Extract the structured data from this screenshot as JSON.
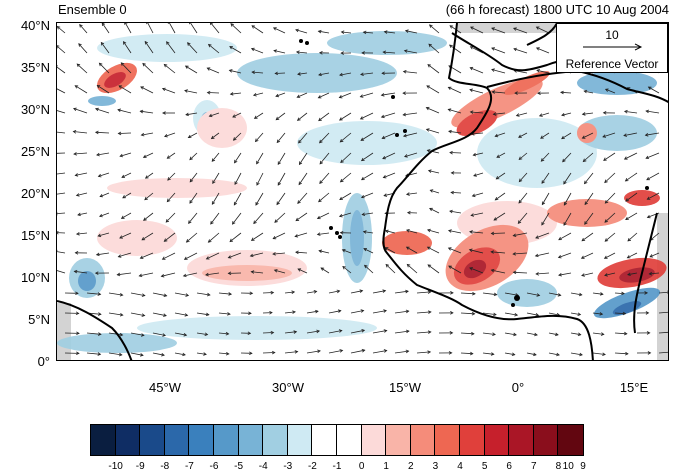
{
  "header": {
    "ensemble_label": "Ensemble 0",
    "forecast_label": "(66 h forecast) 1800 UTC 10 Aug 2004"
  },
  "map": {
    "extent": {
      "lon_min": -58,
      "lon_max": 20,
      "lat_min": 0,
      "lat_max": 40
    },
    "lat_ticks": [
      "0°",
      "5°N",
      "10°N",
      "15°N",
      "20°N",
      "25°N",
      "30°N",
      "35°N",
      "40°N"
    ],
    "lon_ticks": [
      "45°W",
      "30°W",
      "15°W",
      "0°",
      "15°E"
    ],
    "land_color": "#d3d3d3",
    "coastline_color": "#000000"
  },
  "reference_vector": {
    "value": "10",
    "label": "Reference Vector"
  },
  "colorbar": {
    "colors": [
      "#0a1e40",
      "#0f2d64",
      "#1a4a8a",
      "#2b68aa",
      "#3a80bd",
      "#5699c9",
      "#78b3d6",
      "#a1cfe2",
      "#cfeaf3",
      "#ffffff",
      "#ffffff",
      "#fcdad9",
      "#f9b4a8",
      "#f58c7a",
      "#ee6752",
      "#e0403b",
      "#c6202c",
      "#aa1626",
      "#8a0e1c",
      "#620610"
    ],
    "tick_labels": [
      "-10",
      "-9",
      "-8",
      "-7",
      "-6",
      "-5",
      "-4",
      "-3",
      "-2",
      "-1",
      "0",
      "1",
      "2",
      "3",
      "4",
      "5",
      "6",
      "7",
      "8",
      "9",
      "10"
    ]
  }
}
